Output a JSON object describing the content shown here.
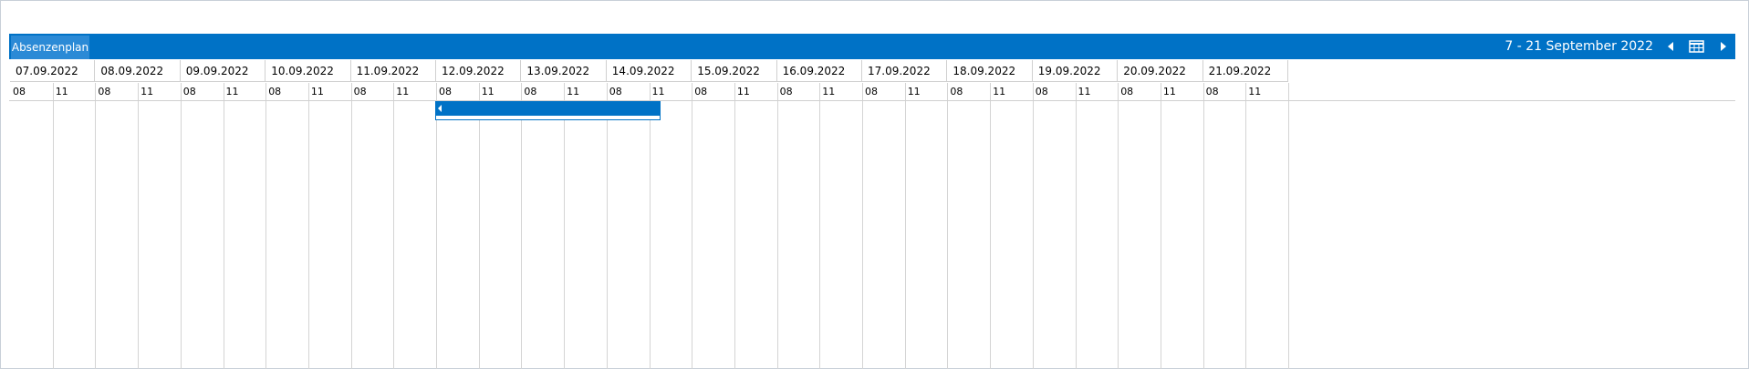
{
  "header": {
    "tab": "Absenzenplan",
    "range": "7  - 21 September 2022"
  },
  "dates": [
    "07.09.2022",
    "08.09.2022",
    "09.09.2022",
    "10.09.2022",
    "11.09.2022",
    "12.09.2022",
    "13.09.2022",
    "14.09.2022",
    "15.09.2022",
    "16.09.2022",
    "17.09.2022",
    "18.09.2022",
    "19.09.2022",
    "20.09.2022",
    "21.09.2022"
  ],
  "hours": [
    "08",
    "11"
  ]
}
